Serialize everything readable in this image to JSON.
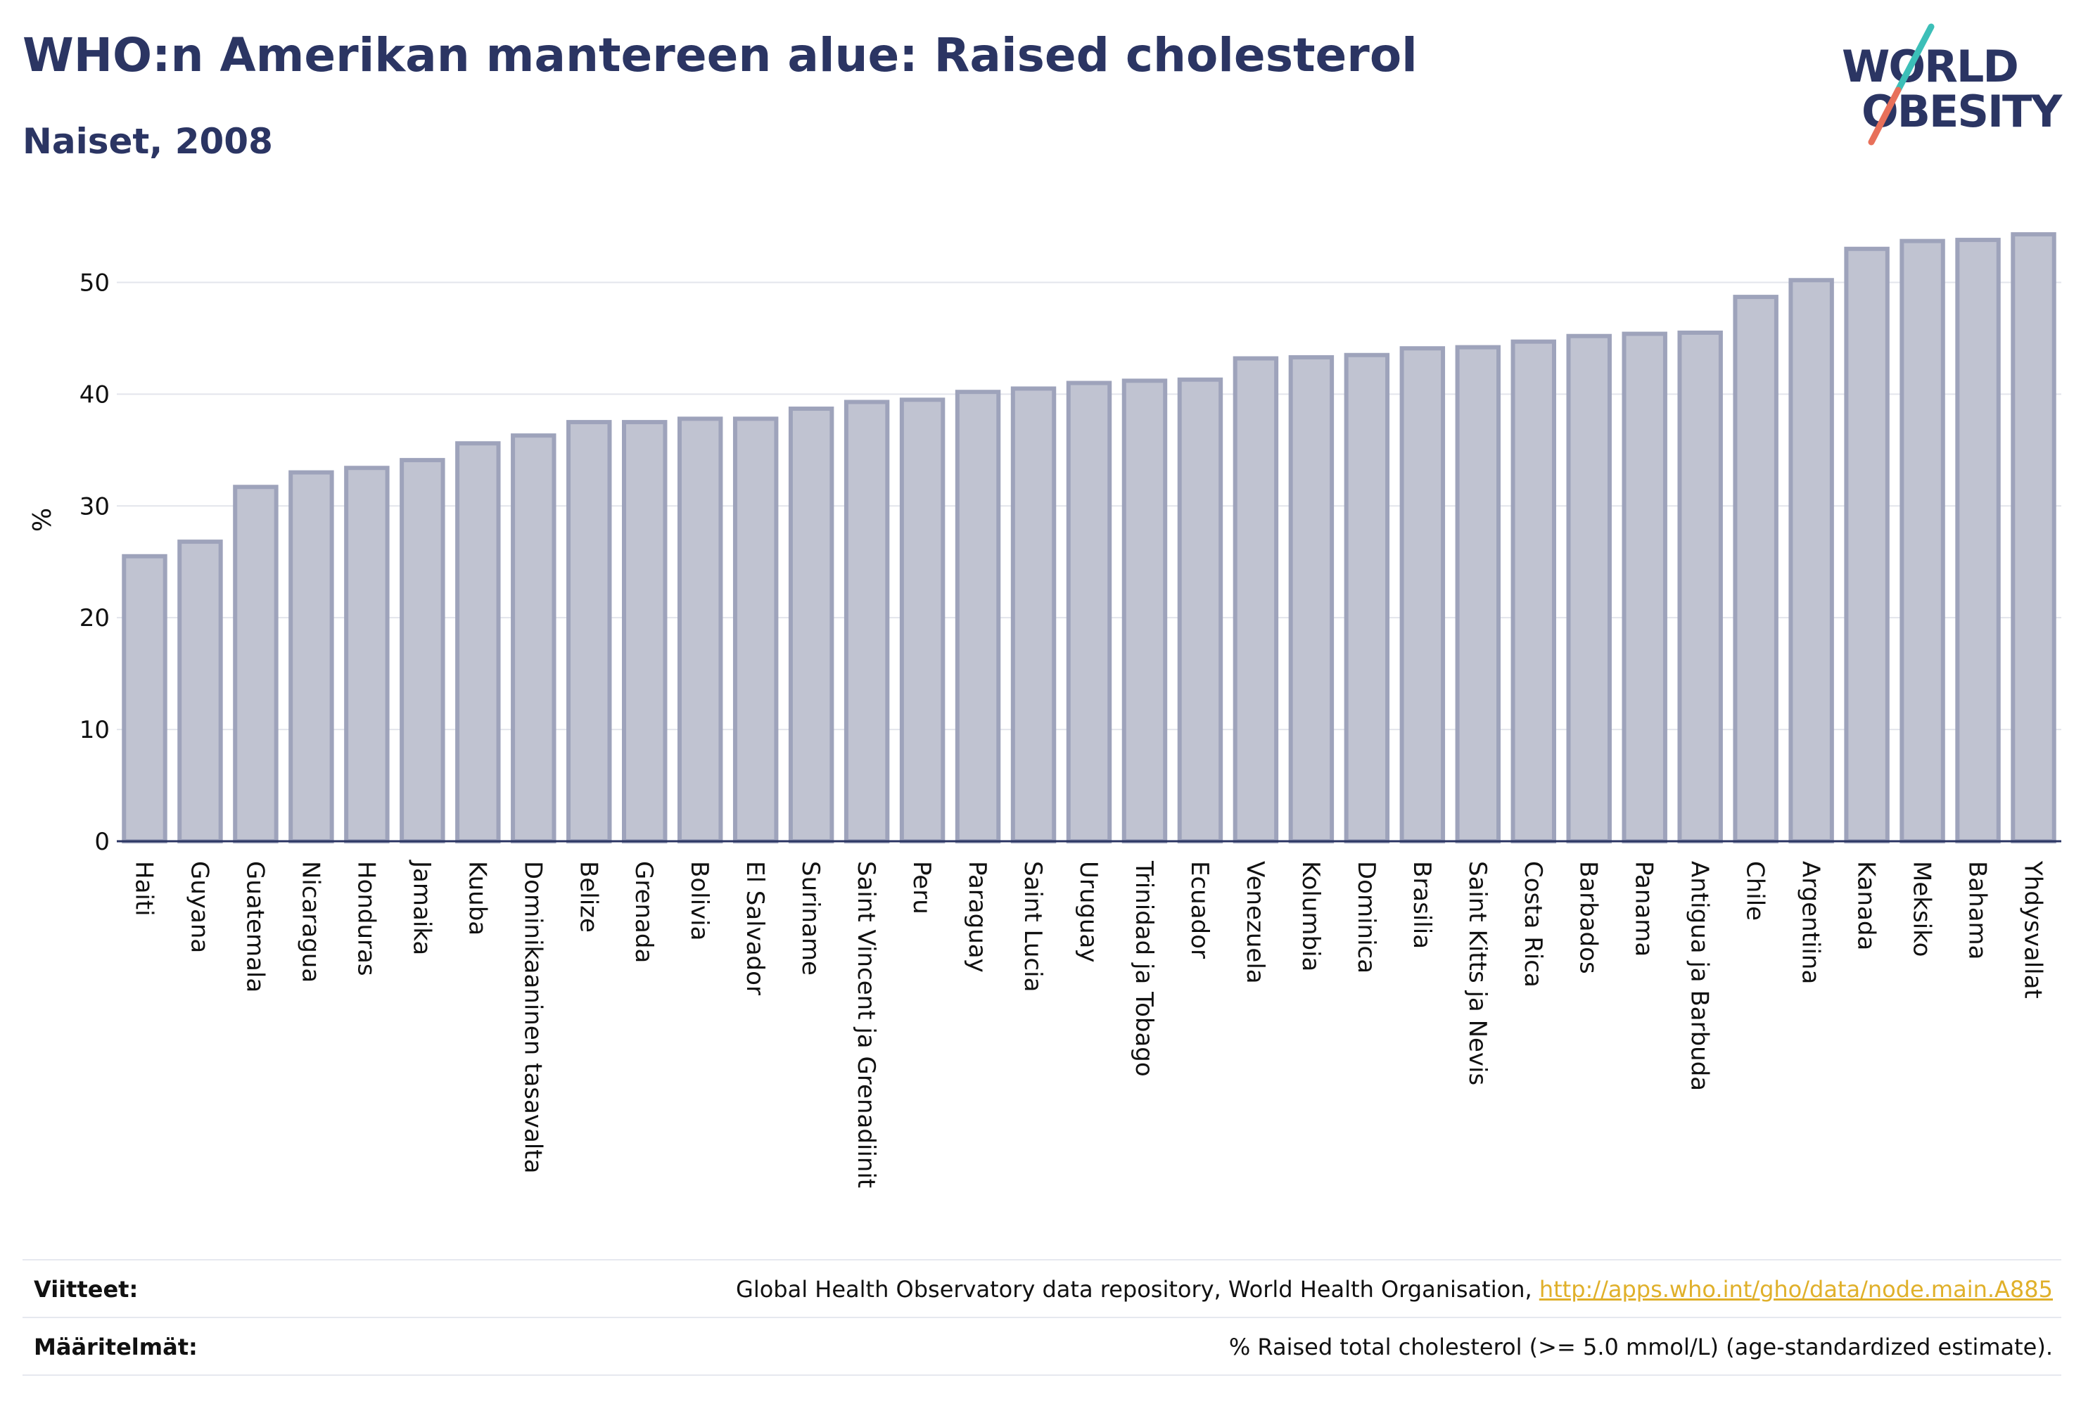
{
  "header": {
    "title": "WHO:n Amerikan mantereen alue: Raised cholesterol",
    "subtitle": "Naiset, 2008"
  },
  "logo": {
    "line1": "WORLD",
    "line2": "OBESITY"
  },
  "chart_data": {
    "type": "bar",
    "ylabel": "%",
    "ylim": [
      0,
      55
    ],
    "yticks": [
      0,
      10,
      20,
      30,
      40,
      50
    ],
    "grid": true,
    "categories": [
      "Haiti",
      "Guyana",
      "Guatemala",
      "Nicaragua",
      "Honduras",
      "Jamaika",
      "Kuuba",
      "Dominikaaninen tasavalta",
      "Belize",
      "Grenada",
      "Bolivia",
      "El Salvador",
      "Suriname",
      "Saint Vincent ja Grenadiinit",
      "Peru",
      "Paraguay",
      "Saint Lucia",
      "Uruguay",
      "Trinidad ja Tobago",
      "Ecuador",
      "Venezuela",
      "Kolumbia",
      "Dominica",
      "Brasilia",
      "Saint Kitts ja Nevis",
      "Costa Rica",
      "Barbados",
      "Panama",
      "Antigua ja Barbuda",
      "Chile",
      "Argentiina",
      "Kanada",
      "Meksiko",
      "Bahama",
      "Yhdysvallat"
    ],
    "values": [
      25.5,
      26.8,
      31.7,
      33.0,
      33.4,
      34.1,
      35.6,
      36.3,
      37.5,
      37.5,
      37.8,
      37.8,
      38.7,
      39.3,
      39.5,
      40.2,
      40.5,
      41.0,
      41.2,
      41.3,
      43.2,
      43.3,
      43.5,
      44.1,
      44.2,
      44.7,
      45.2,
      45.4,
      45.5,
      48.7,
      50.2,
      53.0,
      53.7,
      53.8,
      54.3
    ],
    "bar_color": "#c0c3d1",
    "bar_edge_color": "#9ea3bb"
  },
  "footer": {
    "sources_label": "Viitteet:",
    "sources_text": "Global Health Observatory data repository, World Health Organisation, ",
    "sources_link": "http://apps.who.int/gho/data/node.main.A885",
    "definitions_label": "Määritelmät:",
    "definitions_text": "% Raised total cholesterol (>= 5.0 mmol/L) (age-standardized estimate)."
  },
  "colors": {
    "title": "#2b3563",
    "link": "#e0b02a",
    "grid": "#e3e5ec",
    "axis": "#2b3563",
    "logo_teal": "#3cbfb8",
    "logo_coral": "#e8705a"
  }
}
